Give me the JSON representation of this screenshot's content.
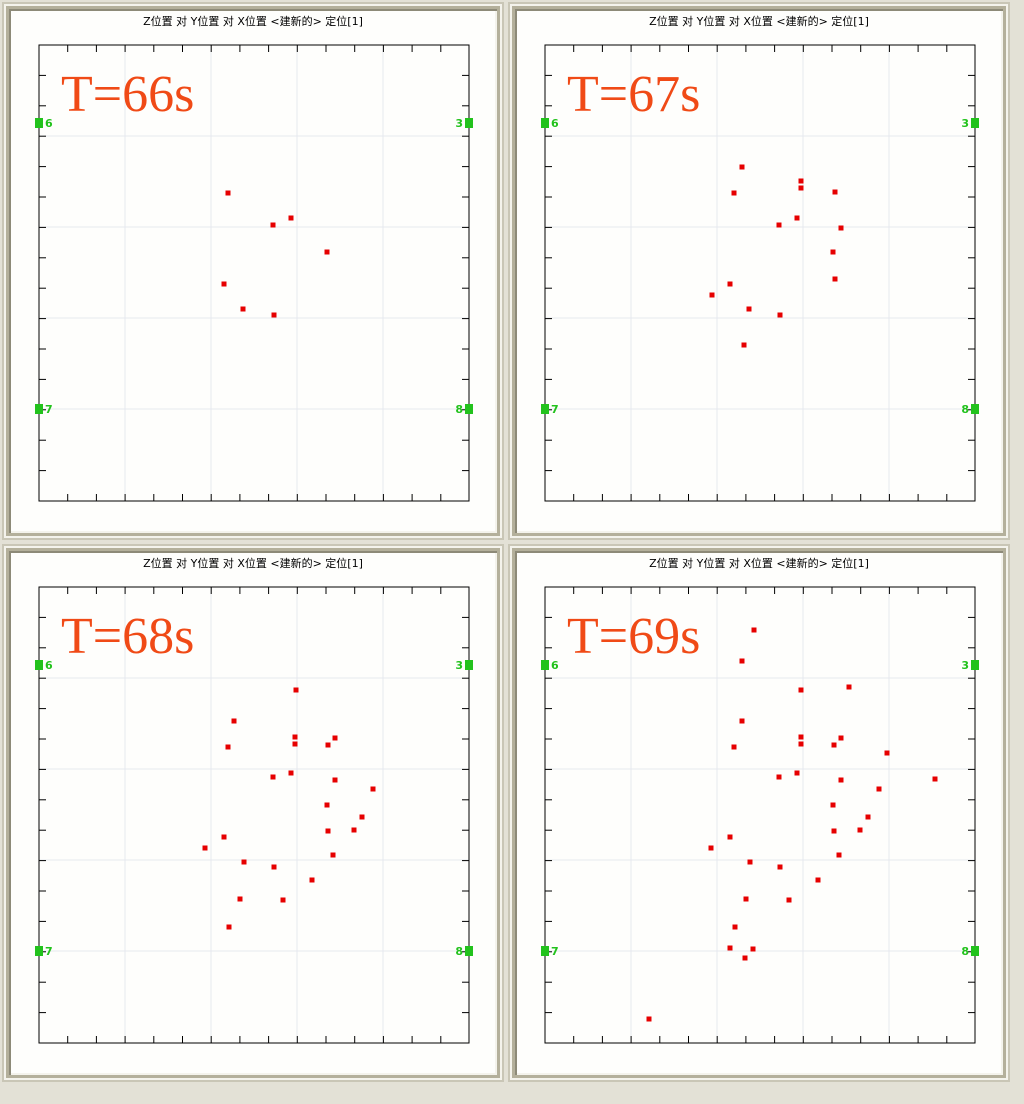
{
  "chart_data": [
    {
      "type": "scatter",
      "title": "Z位置 对 Y位置 对 X位置 <建新的> 定位[1]",
      "annotation": "T=66s",
      "xlim": [
        0,
        430
      ],
      "ylim": [
        0,
        456
      ],
      "grid": true,
      "marker_color": "#e60000",
      "sensors": [
        {
          "label": "6",
          "x": 0,
          "y": 378,
          "side": "left"
        },
        {
          "label": "3",
          "x": 430,
          "y": 378,
          "side": "right"
        },
        {
          "label": "7",
          "x": 0,
          "y": 92,
          "side": "left"
        },
        {
          "label": "8",
          "x": 430,
          "y": 92,
          "side": "right"
        }
      ],
      "points": [
        [
          189,
          308
        ],
        [
          234,
          276
        ],
        [
          252,
          283
        ],
        [
          288,
          249
        ],
        [
          185,
          217
        ],
        [
          204,
          192
        ],
        [
          235,
          186
        ]
      ]
    },
    {
      "type": "scatter",
      "title": "Z位置 对 Y位置 对 X位置 <建新的> 定位[1]",
      "annotation": "T=67s",
      "xlim": [
        0,
        430
      ],
      "ylim": [
        0,
        456
      ],
      "grid": true,
      "marker_color": "#e60000",
      "sensors": [
        {
          "label": "6",
          "x": 0,
          "y": 378,
          "side": "left"
        },
        {
          "label": "3",
          "x": 430,
          "y": 378,
          "side": "right"
        },
        {
          "label": "7",
          "x": 0,
          "y": 92,
          "side": "left"
        },
        {
          "label": "8",
          "x": 430,
          "y": 92,
          "side": "right"
        }
      ],
      "points": [
        [
          197,
          334
        ],
        [
          256,
          320
        ],
        [
          256,
          313
        ],
        [
          290,
          309
        ],
        [
          189,
          308
        ],
        [
          234,
          276
        ],
        [
          252,
          283
        ],
        [
          296,
          273
        ],
        [
          288,
          249
        ],
        [
          290,
          222
        ],
        [
          185,
          217
        ],
        [
          167,
          206
        ],
        [
          204,
          192
        ],
        [
          235,
          186
        ],
        [
          199,
          156
        ]
      ]
    },
    {
      "type": "scatter",
      "title": "Z位置 对 Y位置 对 X位置 <建新的> 定位[1]",
      "annotation": "T=68s",
      "xlim": [
        0,
        430
      ],
      "ylim": [
        0,
        456
      ],
      "grid": true,
      "marker_color": "#e60000",
      "sensors": [
        {
          "label": "6",
          "x": 0,
          "y": 378,
          "side": "left"
        },
        {
          "label": "3",
          "x": 430,
          "y": 378,
          "side": "right"
        },
        {
          "label": "7",
          "x": 0,
          "y": 92,
          "side": "left"
        },
        {
          "label": "8",
          "x": 430,
          "y": 92,
          "side": "right"
        }
      ],
      "points": [
        [
          257,
          353
        ],
        [
          195,
          322
        ],
        [
          189,
          296
        ],
        [
          296,
          305
        ],
        [
          289,
          298
        ],
        [
          256,
          306
        ],
        [
          256,
          299
        ],
        [
          252,
          270
        ],
        [
          234,
          266
        ],
        [
          296,
          263
        ],
        [
          334,
          254
        ],
        [
          288,
          238
        ],
        [
          323,
          226
        ],
        [
          289,
          212
        ],
        [
          315,
          213
        ],
        [
          185,
          206
        ],
        [
          166,
          195
        ],
        [
          205,
          181
        ],
        [
          235,
          176
        ],
        [
          294,
          188
        ],
        [
          273,
          163
        ],
        [
          201,
          144
        ],
        [
          244,
          143
        ],
        [
          190,
          116
        ]
      ]
    },
    {
      "type": "scatter",
      "title": "Z位置 对 Y位置 对 X位置 <建新的> 定位[1]",
      "annotation": "T=69s",
      "xlim": [
        0,
        430
      ],
      "ylim": [
        0,
        456
      ],
      "grid": true,
      "marker_color": "#e60000",
      "sensors": [
        {
          "label": "6",
          "x": 0,
          "y": 378,
          "side": "left"
        },
        {
          "label": "3",
          "x": 430,
          "y": 378,
          "side": "right"
        },
        {
          "label": "7",
          "x": 0,
          "y": 92,
          "side": "left"
        },
        {
          "label": "8",
          "x": 430,
          "y": 92,
          "side": "right"
        }
      ],
      "points": [
        [
          209,
          413
        ],
        [
          197,
          382
        ],
        [
          256,
          353
        ],
        [
          304,
          356
        ],
        [
          197,
          322
        ],
        [
          189,
          296
        ],
        [
          296,
          305
        ],
        [
          289,
          298
        ],
        [
          256,
          306
        ],
        [
          256,
          299
        ],
        [
          342,
          290
        ],
        [
          252,
          270
        ],
        [
          234,
          266
        ],
        [
          390,
          264
        ],
        [
          296,
          263
        ],
        [
          334,
          254
        ],
        [
          288,
          238
        ],
        [
          323,
          226
        ],
        [
          289,
          212
        ],
        [
          315,
          213
        ],
        [
          185,
          206
        ],
        [
          166,
          195
        ],
        [
          205,
          181
        ],
        [
          235,
          176
        ],
        [
          294,
          188
        ],
        [
          273,
          163
        ],
        [
          201,
          144
        ],
        [
          244,
          143
        ],
        [
          190,
          116
        ],
        [
          185,
          95
        ],
        [
          208,
          94
        ],
        [
          200,
          85
        ],
        [
          104,
          24
        ]
      ]
    }
  ]
}
